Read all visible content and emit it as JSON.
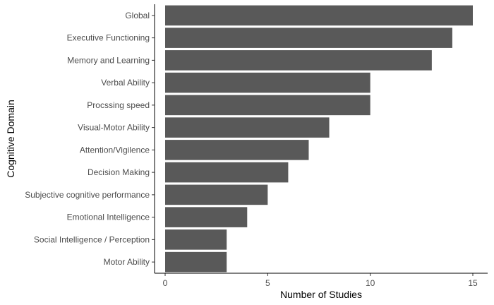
{
  "chart_data": {
    "type": "bar",
    "orientation": "horizontal",
    "categories": [
      "Global",
      "Executive Functioning",
      "Memory and Learning",
      "Verbal Ability",
      "Procssing speed",
      "Visual-Motor Ability",
      "Attention/Vigilence",
      "Decision Making",
      "Subjective cognitive performance",
      "Emotional Intelligence",
      "Social Intelligence / Perception",
      "Motor Ability"
    ],
    "values": [
      15,
      14,
      13,
      10,
      10,
      8,
      7,
      6,
      5,
      4,
      3,
      3
    ],
    "xlabel": "Number of Studies",
    "ylabel": "Cognitive Domain",
    "xlim": [
      0,
      15
    ],
    "xticks": [
      0,
      5,
      10,
      15
    ],
    "grid": false,
    "bar_color": "#595959"
  }
}
